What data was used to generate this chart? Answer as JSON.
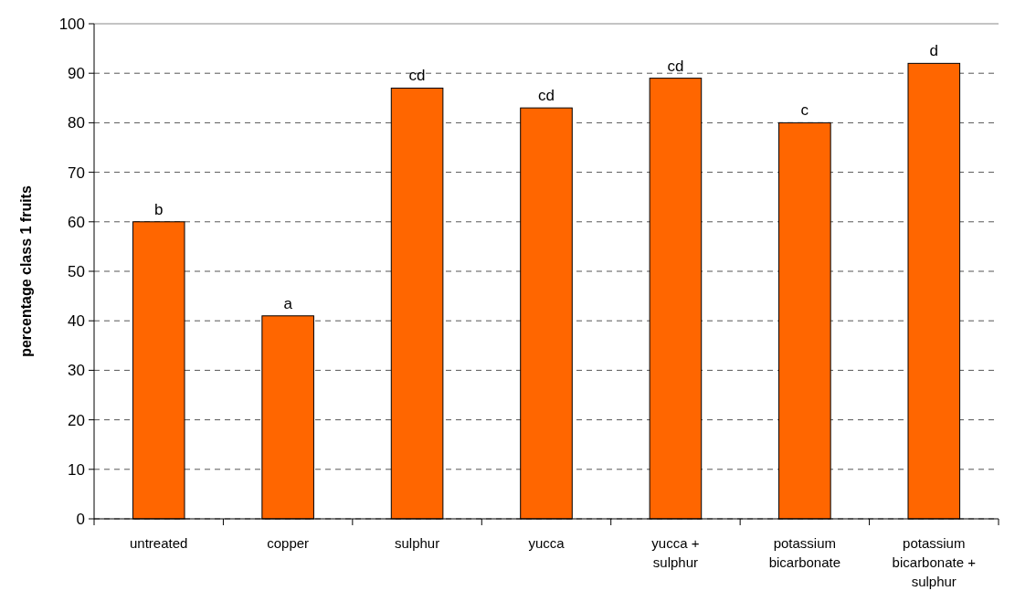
{
  "chart_data": {
    "type": "bar",
    "ylabel": "percentage class 1 fruits",
    "categories": [
      "untreated",
      "copper",
      "sulphur",
      "yucca",
      "yucca + sulphur",
      "potassium bicarbonate",
      "potassium bicarbonate + sulphur"
    ],
    "values": [
      60,
      41,
      87,
      83,
      89,
      80,
      92
    ],
    "color": "#ff6600",
    "ylim": [
      0,
      100
    ],
    "yticks": [
      0,
      10,
      20,
      30,
      40,
      50,
      60,
      70,
      80,
      90,
      100
    ],
    "grid": "y",
    "annotations": [
      {
        "text": "b",
        "x": "untreated",
        "y": 60
      },
      {
        "text": "a",
        "x": "copper",
        "y": 41
      },
      {
        "text": "cd",
        "x": "sulphur",
        "y": 87
      },
      {
        "text": "cd",
        "x": "yucca",
        "y": 83
      },
      {
        "text": "cd",
        "x": "yucca + sulphur",
        "y": 89
      },
      {
        "text": "c",
        "x": "potassium bicarbonate",
        "y": 80
      },
      {
        "text": "d",
        "x": "potassium bicarbonate + sulphur",
        "y": 92
      }
    ]
  }
}
